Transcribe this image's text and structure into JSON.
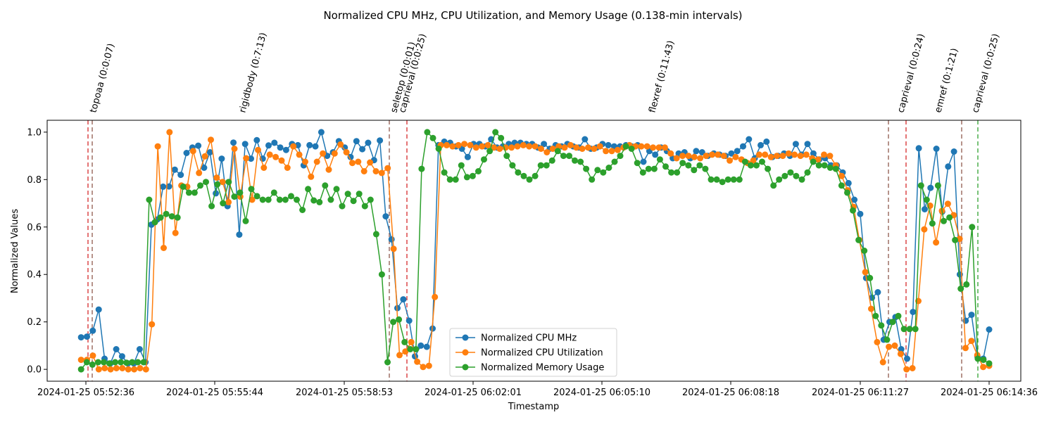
{
  "chart_data": {
    "type": "line",
    "title": "Normalized CPU MHz, CPU Utilization, and Memory Usage (0.138-min intervals)",
    "xlabel": "Timestamp",
    "ylabel": "Normalized Values",
    "x_ticks": [
      "2024-01-25 05:52:36",
      "2024-01-25 05:55:44",
      "2024-01-25 05:58:53",
      "2024-01-25 06:02:01",
      "2024-01-25 06:05:10",
      "2024-01-25 06:08:18",
      "2024-01-25 06:11:27",
      "2024-01-25 06:14:36"
    ],
    "y_ticks": [
      "0.0",
      "0.2",
      "0.4",
      "0.6",
      "0.8",
      "1.0"
    ],
    "ylim": [
      -0.05,
      1.05
    ],
    "x_range_seconds": [
      0,
      1320
    ],
    "grid": false,
    "legend_position": "bottom-center",
    "series": [
      {
        "name": "Normalized CPU MHz",
        "color": "#1f77b4",
        "values": [
          0.135,
          0.138,
          0.163,
          0.252,
          0.045,
          0.025,
          0.085,
          0.055,
          0.025,
          0.025,
          0.085,
          0.03,
          0.61,
          0.632,
          0.77,
          0.771,
          0.842,
          0.82,
          0.912,
          0.935,
          0.943,
          0.85,
          0.915,
          0.742,
          0.888,
          0.688,
          0.956,
          0.568,
          0.95,
          0.888,
          0.966,
          0.888,
          0.944,
          0.955,
          0.935,
          0.925,
          0.95,
          0.945,
          0.86,
          0.945,
          0.94,
          1.0,
          0.9,
          0.915,
          0.962,
          0.935,
          0.895,
          0.962,
          0.928,
          0.955,
          0.882,
          0.965,
          0.645,
          0.548,
          0.258,
          0.295,
          0.205,
          0.055,
          0.1,
          0.095,
          0.172,
          0.945,
          0.96,
          0.955,
          0.94,
          0.93,
          0.895,
          0.95,
          0.95,
          0.94,
          0.97,
          0.935,
          0.94,
          0.95,
          0.955,
          0.955,
          0.95,
          0.95,
          0.935,
          0.95,
          0.93,
          0.945,
          0.94,
          0.95,
          0.94,
          0.935,
          0.97,
          0.93,
          0.935,
          0.95,
          0.945,
          0.94,
          0.94,
          0.945,
          0.94,
          0.945,
          0.875,
          0.92,
          0.905,
          0.935,
          0.92,
          0.89,
          0.91,
          0.915,
          0.89,
          0.92,
          0.915,
          0.9,
          0.91,
          0.905,
          0.9,
          0.91,
          0.92,
          0.94,
          0.97,
          0.89,
          0.945,
          0.96,
          0.895,
          0.9,
          0.91,
          0.9,
          0.95,
          0.905,
          0.95,
          0.91,
          0.885,
          0.89,
          0.86,
          0.86,
          0.83,
          0.785,
          0.715,
          0.655,
          0.385,
          0.302,
          0.325,
          0.125,
          0.2,
          0.22,
          0.085,
          0.045,
          0.242,
          0.932,
          0.675,
          0.765,
          0.93,
          0.665,
          0.855,
          0.918,
          0.4,
          0.205,
          0.23,
          0.055,
          0.045,
          0.168
        ]
      },
      {
        "name": "Normalized CPU Utilization",
        "color": "#ff7f0e",
        "values": [
          0.04,
          0.04,
          0.058,
          0.0,
          0.005,
          0.0,
          0.005,
          0.005,
          0.0,
          0.0,
          0.005,
          0.0,
          0.19,
          0.94,
          0.512,
          1.0,
          0.575,
          0.775,
          0.77,
          0.92,
          0.828,
          0.898,
          0.968,
          0.808,
          0.79,
          0.705,
          0.93,
          0.728,
          0.89,
          0.715,
          0.925,
          0.85,
          0.905,
          0.895,
          0.88,
          0.85,
          0.94,
          0.905,
          0.875,
          0.812,
          0.875,
          0.91,
          0.842,
          0.91,
          0.948,
          0.915,
          0.87,
          0.875,
          0.835,
          0.872,
          0.835,
          0.828,
          0.848,
          0.508,
          0.06,
          0.075,
          0.115,
          0.032,
          0.01,
          0.015,
          0.305,
          0.945,
          0.945,
          0.94,
          0.945,
          0.95,
          0.945,
          0.935,
          0.94,
          0.945,
          0.935,
          0.93,
          0.935,
          0.935,
          0.94,
          0.945,
          0.94,
          0.94,
          0.93,
          0.915,
          0.93,
          0.94,
          0.935,
          0.945,
          0.935,
          0.93,
          0.935,
          0.93,
          0.94,
          0.92,
          0.92,
          0.925,
          0.935,
          0.945,
          0.94,
          0.94,
          0.94,
          0.935,
          0.935,
          0.935,
          0.91,
          0.89,
          0.9,
          0.9,
          0.895,
          0.89,
          0.9,
          0.905,
          0.905,
          0.9,
          0.88,
          0.895,
          0.885,
          0.87,
          0.88,
          0.905,
          0.905,
          0.895,
          0.9,
          0.9,
          0.91,
          0.905,
          0.9,
          0.905,
          0.89,
          0.885,
          0.905,
          0.9,
          0.86,
          0.815,
          0.755,
          0.685,
          0.545,
          0.41,
          0.255,
          0.115,
          0.03,
          0.095,
          0.1,
          0.065,
          0.0,
          0.005,
          0.288,
          0.59,
          0.69,
          0.535,
          0.668,
          0.698,
          0.65,
          0.55,
          0.09,
          0.12,
          0.06,
          0.01,
          0.015
        ]
      },
      {
        "name": "Normalized Memory Usage",
        "color": "#2ca02c",
        "values": [
          0.0,
          0.03,
          0.02,
          0.03,
          0.03,
          0.025,
          0.03,
          0.03,
          0.028,
          0.03,
          0.03,
          0.03,
          0.715,
          0.62,
          0.64,
          0.655,
          0.645,
          0.64,
          0.77,
          0.745,
          0.745,
          0.775,
          0.79,
          0.688,
          0.78,
          0.7,
          0.79,
          0.728,
          0.745,
          0.625,
          0.76,
          0.73,
          0.715,
          0.715,
          0.745,
          0.715,
          0.715,
          0.73,
          0.715,
          0.672,
          0.76,
          0.712,
          0.705,
          0.775,
          0.715,
          0.76,
          0.688,
          0.74,
          0.71,
          0.74,
          0.688,
          0.715,
          0.57,
          0.4,
          0.03,
          0.2,
          0.21,
          0.115,
          0.085,
          0.085,
          0.845,
          1.0,
          0.975,
          0.93,
          0.83,
          0.8,
          0.8,
          0.86,
          0.81,
          0.815,
          0.835,
          0.885,
          0.92,
          1.0,
          0.975,
          0.9,
          0.86,
          0.83,
          0.815,
          0.8,
          0.815,
          0.86,
          0.86,
          0.88,
          0.92,
          0.9,
          0.9,
          0.88,
          0.875,
          0.845,
          0.8,
          0.84,
          0.83,
          0.85,
          0.875,
          0.9,
          0.94,
          0.93,
          0.87,
          0.83,
          0.845,
          0.845,
          0.885,
          0.855,
          0.83,
          0.83,
          0.87,
          0.86,
          0.84,
          0.86,
          0.845,
          0.8,
          0.8,
          0.79,
          0.8,
          0.8,
          0.8,
          0.875,
          0.86,
          0.86,
          0.875,
          0.845,
          0.775,
          0.8,
          0.815,
          0.83,
          0.815,
          0.8,
          0.83,
          0.875,
          0.86,
          0.86,
          0.85,
          0.845,
          0.775,
          0.745,
          0.67,
          0.545,
          0.5,
          0.385,
          0.225,
          0.185,
          0.125,
          0.2,
          0.225,
          0.17,
          0.17,
          0.17,
          0.775,
          0.715,
          0.615,
          0.775,
          0.625,
          0.64,
          0.545,
          0.34,
          0.358,
          0.6,
          0.045,
          0.04,
          0.025
        ]
      }
    ],
    "annotations": [
      {
        "label": "topoaa (0:0:07)",
        "x_sec": 79,
        "line_color": "#d62728"
      },
      {
        "label": "rigidbody (0:7:13)",
        "x_sec": 0,
        "line_color": "#8c564b",
        "label_only": true
      },
      {
        "label": "seletop (0:0:01)",
        "x_sec": 0,
        "line_color": "#8c564b"
      },
      {
        "label": "caprieval (0:0:25)",
        "x_sec": 0,
        "line_color": "#d62728"
      },
      {
        "label": "flexref (0:11:43)",
        "x_sec": 0,
        "line_color": "#8c564b",
        "label_only": true
      },
      {
        "label": "caprieval (0:0:24)",
        "x_sec": 0,
        "line_color": "#8c564b"
      },
      {
        "label": "emref (0:1:21)",
        "x_sec": 0,
        "line_color": "#8c564b",
        "label_only": true
      },
      {
        "label": "caprieval (0:0:25)",
        "x_sec": 0,
        "line_color": "#2ca02c"
      }
    ]
  }
}
